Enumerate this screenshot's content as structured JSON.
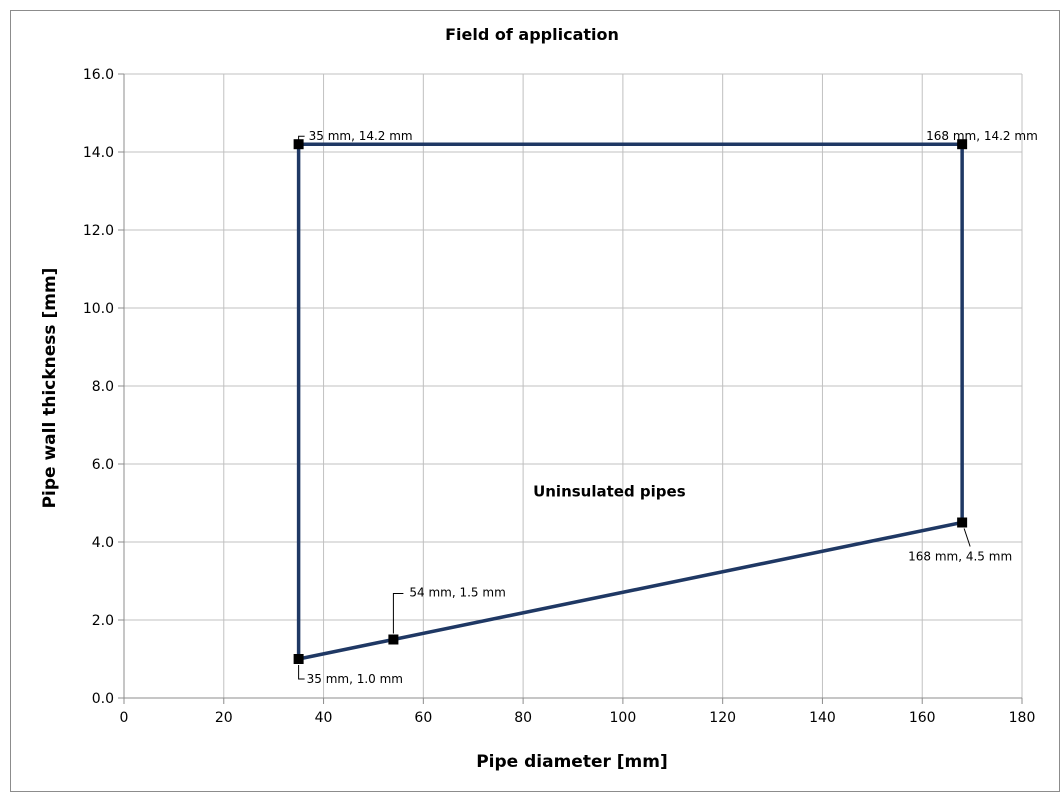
{
  "chart_data": {
    "type": "line",
    "title": "Field of application",
    "xlabel": "Pipe diameter [mm]",
    "ylabel": "Pipe wall thickness [mm]",
    "xlim": [
      0,
      180
    ],
    "ylim": [
      0,
      16
    ],
    "x_ticks": [
      0,
      20,
      40,
      60,
      80,
      100,
      120,
      140,
      160,
      180
    ],
    "y_ticks": [
      "0.0",
      "2.0",
      "4.0",
      "6.0",
      "8.0",
      "10.0",
      "12.0",
      "14.0",
      "16.0"
    ],
    "grid": true,
    "colors": {
      "series": "#1f3864",
      "marker": "#000000",
      "grid": "#c0c0c0"
    },
    "series": [
      {
        "x": [
          35,
          35,
          168,
          168,
          54,
          35
        ],
        "y": [
          1.0,
          14.2,
          14.2,
          4.5,
          1.5,
          1.0
        ]
      }
    ],
    "point_labels": [
      {
        "x": 35,
        "y": 14.2,
        "text": "35 mm, 14.2 mm"
      },
      {
        "x": 168,
        "y": 14.2,
        "text": "168 mm, 14.2 mm"
      },
      {
        "x": 168,
        "y": 4.5,
        "text": "168 mm, 4.5 mm"
      },
      {
        "x": 54,
        "y": 1.5,
        "text": "54 mm, 1.5 mm"
      },
      {
        "x": 35,
        "y": 1.0,
        "text": "35 mm, 1.0 mm"
      }
    ],
    "annotations": [
      {
        "text": "Uninsulated pipes",
        "x": 82,
        "y": 5.3
      }
    ]
  }
}
